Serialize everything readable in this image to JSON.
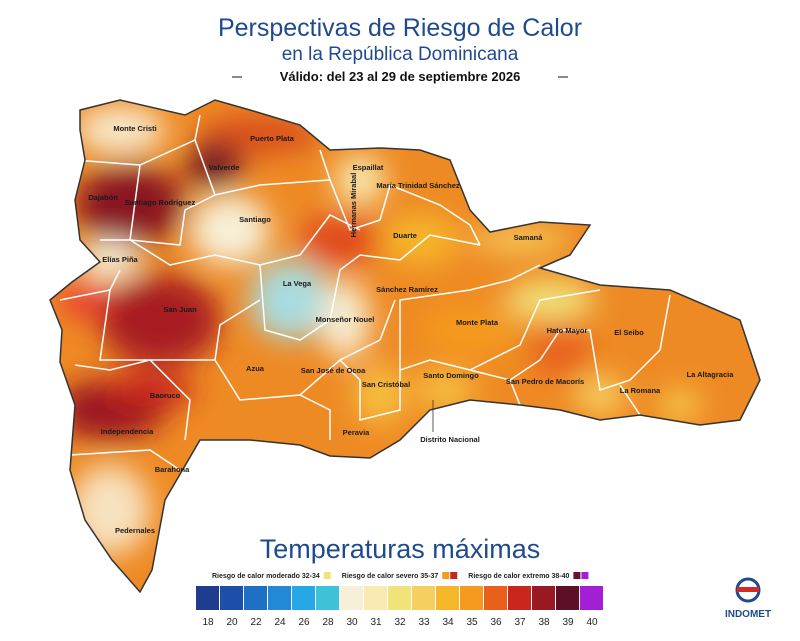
{
  "header": {
    "title": "Perspectivas de Riesgo de Calor",
    "subtitle": "en la República Dominicana",
    "validity": "Válido: del 23 al 29 de septiembre 2026"
  },
  "provinces": [
    "Monte Cristi",
    "Puerto Plata",
    "Valverde",
    "Dajabón",
    "Santiago Rodríguez",
    "Santiago",
    "Espaillat",
    "Hermanas Mirabal",
    "María Trinidad Sánchez",
    "Samaná",
    "Duarte",
    "Elías Piña",
    "La Vega",
    "Sánchez Ramírez",
    "San Juan",
    "Monseñor Nouel",
    "Monte Plata",
    "Hato Mayor",
    "El Seibo",
    "Azua",
    "San José de Ocoa",
    "San Cristóbal",
    "Santo Domingo",
    "San Pedro de Macorís",
    "La Romana",
    "La Altagracia",
    "Baoruco",
    "Independencia",
    "Peravia",
    "Distrito Nacional",
    "Barahona",
    "Pedernales"
  ],
  "legend": {
    "title": "Temperaturas máximas",
    "categories": [
      {
        "label": "Riesgo de calor moderado 32-34",
        "colors": [
          "#f1e27a"
        ]
      },
      {
        "label": "Riesgo de calor severo 35-37",
        "colors": [
          "#f59a1e",
          "#c8261e"
        ]
      },
      {
        "label": "Riesgo de calor extremo 38-40",
        "colors": [
          "#6a1030",
          "#a21fd6"
        ]
      }
    ],
    "scale": [
      {
        "value": 18,
        "color": "#1f3c8f"
      },
      {
        "value": 20,
        "color": "#1e4fa8"
      },
      {
        "value": 22,
        "color": "#1e70c4"
      },
      {
        "value": 24,
        "color": "#2389d6"
      },
      {
        "value": 26,
        "color": "#26a8e6"
      },
      {
        "value": 28,
        "color": "#3ec2d8"
      },
      {
        "value": 30,
        "color": "#f7f0d8"
      },
      {
        "value": 31,
        "color": "#f8eab0"
      },
      {
        "value": 32,
        "color": "#f1e27a"
      },
      {
        "value": 33,
        "color": "#f5cf60"
      },
      {
        "value": 34,
        "color": "#f6b62a"
      },
      {
        "value": 35,
        "color": "#f59a1e"
      },
      {
        "value": 36,
        "color": "#e8601a"
      },
      {
        "value": 37,
        "color": "#c8261e"
      },
      {
        "value": 38,
        "color": "#9a1822"
      },
      {
        "value": 39,
        "color": "#5c0f25"
      },
      {
        "value": 40,
        "color": "#a21fd6"
      }
    ]
  },
  "logo": "INDOMET"
}
